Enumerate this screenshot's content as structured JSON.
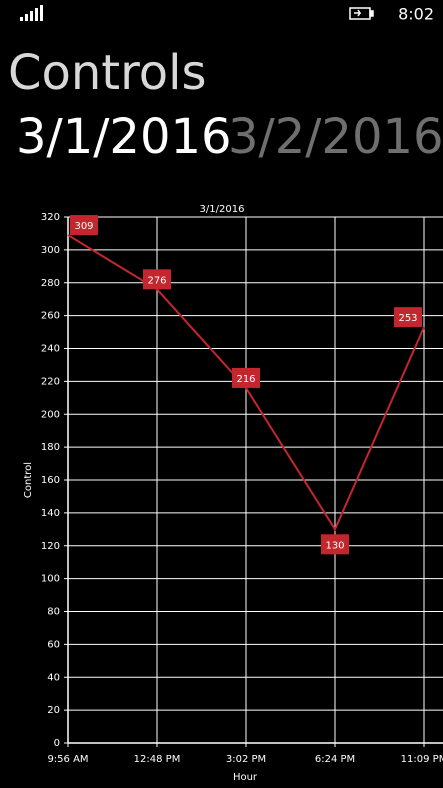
{
  "status_bar": {
    "time": "8:02"
  },
  "header": {
    "title": "Controls",
    "pivots": [
      "3/1/2016",
      "3/2/2016"
    ]
  },
  "chart_data": {
    "type": "line",
    "title": "3/1/2016",
    "x_label": "Hour",
    "y_label": "Control",
    "categories": [
      "9:56 AM",
      "12:48 PM",
      "3:02 PM",
      "6:24 PM",
      "11:09 PM"
    ],
    "values": [
      309,
      276,
      216,
      130,
      253
    ],
    "color": "#c4262e",
    "ylim": [
      0,
      320
    ],
    "yticks": [
      0,
      20,
      40,
      60,
      80,
      100,
      120,
      140,
      160,
      180,
      200,
      220,
      240,
      260,
      280,
      300,
      320
    ],
    "grid": true,
    "data_labels": true
  }
}
